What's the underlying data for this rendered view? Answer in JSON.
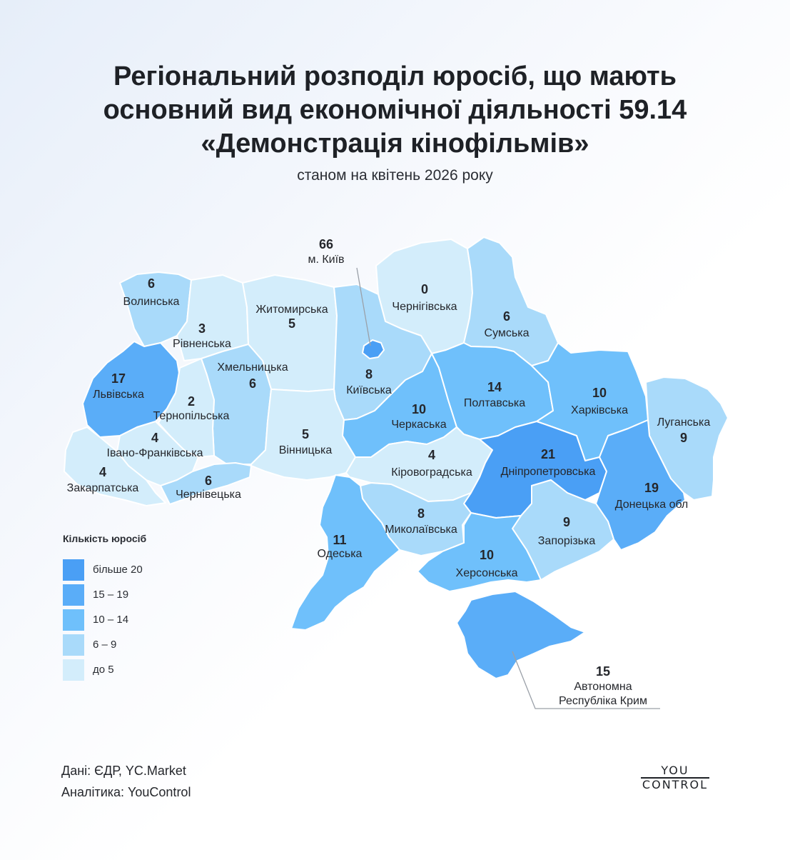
{
  "title_lines": [
    "Регіональний розподіл юросіб, що мають",
    "основний вид економічної діяльності 59.14",
    "«Демонстрація кінофільмів»"
  ],
  "subtitle": "станом на квітень 2026 року",
  "colors": {
    "более_20": "#4a9ff5",
    "15_19": "#5aadf8",
    "10_14": "#6fc0fb",
    "6_9": "#a9dafa",
    "up_to_5": "#d3edfb"
  },
  "legend": {
    "title": "Кількість юросіб",
    "items": [
      {
        "label": "більше 20",
        "color": "#4a9ff5"
      },
      {
        "label": "15 – 19",
        "color": "#5aadf8"
      },
      {
        "label": "10 – 14",
        "color": "#6fc0fb"
      },
      {
        "label": "6 – 9",
        "color": "#a9dafa"
      },
      {
        "label": "до 5",
        "color": "#d3edfb"
      }
    ]
  },
  "regions": {
    "volynska": {
      "name": "Волинська",
      "value": "6"
    },
    "rivnenska": {
      "name": "Рівненська",
      "value": "3"
    },
    "zhytomyrska": {
      "name": "Житомирська",
      "value": "5"
    },
    "kyiv_city": {
      "name": "м. Київ",
      "value": "66"
    },
    "chernihivska": {
      "name": "Чернігівська",
      "value": "0"
    },
    "sumska": {
      "name": "Сумська",
      "value": "6"
    },
    "lvivska": {
      "name": "Львівська",
      "value": "17"
    },
    "khmelnytska": {
      "name": "Хмельницька",
      "value": "6"
    },
    "kyivska": {
      "name": "Київська",
      "value": "8"
    },
    "poltavska": {
      "name": "Полтавська",
      "value": "14"
    },
    "kharkivska": {
      "name": "Харківська",
      "value": "10"
    },
    "ternopilska": {
      "name": "Тернопільська",
      "value": "2"
    },
    "cherkaska": {
      "name": "Черкаська",
      "value": "10"
    },
    "luhanska": {
      "name": "Луганська",
      "value": "9"
    },
    "ivano_frankivska": {
      "name": "Івано-Франківська",
      "value": "4"
    },
    "vinnytska": {
      "name": "Вінницька",
      "value": "5"
    },
    "kirovohradska": {
      "name": "Кіровоградська",
      "value": "4"
    },
    "dnipropetrovska": {
      "name": "Дніпропетровська",
      "value": "21"
    },
    "zakarpatska": {
      "name": "Закарпатська",
      "value": "4"
    },
    "chernivetska": {
      "name": "Чернівецька",
      "value": "6"
    },
    "donetska": {
      "name": "Донецька обл",
      "value": "19"
    },
    "odeska": {
      "name": "Одеська",
      "value": "11"
    },
    "mykolaivska": {
      "name": "Миколаївська",
      "value": "8"
    },
    "zaporizka": {
      "name": "Запорізька",
      "value": "9"
    },
    "khersonska": {
      "name": "Херсонська",
      "value": "10"
    },
    "crimea": {
      "name_line1": "Автономна",
      "name_line2": "Республіка Крим",
      "value": "15"
    }
  },
  "source": {
    "data_line": "Дані: ЄДР, YC.Market",
    "analytics_line": "Аналітика: YouControl"
  },
  "logo": {
    "line1": "YOU",
    "line2": "CONTROL"
  }
}
